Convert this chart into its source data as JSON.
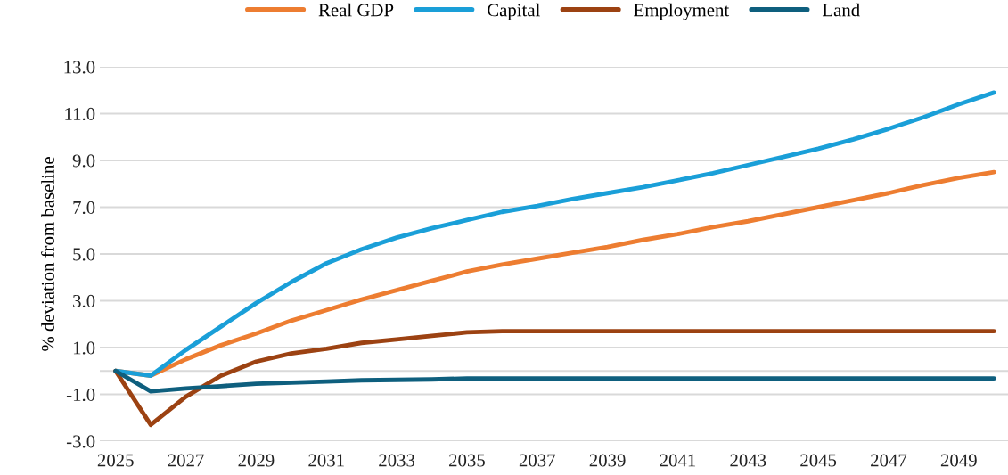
{
  "chart_data": {
    "type": "line",
    "ylabel": "% deviation from baseline",
    "x": [
      2025,
      2026,
      2027,
      2028,
      2029,
      2030,
      2031,
      2032,
      2033,
      2034,
      2035,
      2036,
      2037,
      2038,
      2039,
      2040,
      2041,
      2042,
      2043,
      2044,
      2045,
      2046,
      2047,
      2048,
      2049,
      2050
    ],
    "series": [
      {
        "name": "Real GDP",
        "color": "#ed7d31",
        "values": [
          0,
          -0.2,
          0.5,
          1.1,
          1.6,
          2.15,
          2.6,
          3.05,
          3.45,
          3.85,
          4.25,
          4.55,
          4.8,
          5.05,
          5.3,
          5.6,
          5.85,
          6.15,
          6.4,
          6.7,
          7.0,
          7.3,
          7.6,
          7.95,
          8.25,
          8.5
        ]
      },
      {
        "name": "Capital",
        "color": "#1a9fd8",
        "values": [
          0,
          -0.2,
          0.9,
          1.9,
          2.9,
          3.8,
          4.6,
          5.2,
          5.7,
          6.1,
          6.45,
          6.8,
          7.05,
          7.35,
          7.6,
          7.85,
          8.15,
          8.45,
          8.8,
          9.15,
          9.5,
          9.9,
          10.35,
          10.85,
          11.4,
          11.9
        ]
      },
      {
        "name": "Employment",
        "color": "#9c4212",
        "values": [
          0,
          -2.3,
          -1.1,
          -0.2,
          0.4,
          0.75,
          0.95,
          1.2,
          1.35,
          1.5,
          1.65,
          1.7,
          1.7,
          1.7,
          1.7,
          1.7,
          1.7,
          1.7,
          1.7,
          1.7,
          1.7,
          1.7,
          1.7,
          1.7,
          1.7,
          1.7
        ]
      },
      {
        "name": "Land",
        "color": "#0e5f7e",
        "values": [
          0,
          -0.87,
          -0.75,
          -0.65,
          -0.55,
          -0.5,
          -0.45,
          -0.4,
          -0.38,
          -0.36,
          -0.32,
          -0.32,
          -0.32,
          -0.32,
          -0.32,
          -0.32,
          -0.32,
          -0.32,
          -0.32,
          -0.32,
          -0.32,
          -0.32,
          -0.32,
          -0.32,
          -0.32,
          -0.32
        ]
      }
    ],
    "xlim": [
      2024.55,
      2050.4
    ],
    "xticks": [
      2025,
      2027,
      2029,
      2031,
      2033,
      2035,
      2037,
      2039,
      2041,
      2043,
      2045,
      2047,
      2049
    ],
    "ylim": [
      -3,
      13
    ],
    "yticks": [
      {
        "value": -3,
        "label": "-3.0"
      },
      {
        "value": -1,
        "label": "-1.0"
      },
      {
        "value": 1,
        "label": "1.0"
      },
      {
        "value": 3,
        "label": "3.0"
      },
      {
        "value": 5,
        "label": "5.0"
      },
      {
        "value": 7,
        "label": "7.0"
      },
      {
        "value": 9,
        "label": "9.0"
      },
      {
        "value": 11,
        "label": "11.0"
      },
      {
        "value": 13,
        "label": "13.0"
      }
    ],
    "ref_lines": [
      {
        "axis": "y",
        "value": 0,
        "color": "#d9d9d9"
      }
    ],
    "grid": "y",
    "legend": "top",
    "marker": "none",
    "line_style": "solid"
  }
}
